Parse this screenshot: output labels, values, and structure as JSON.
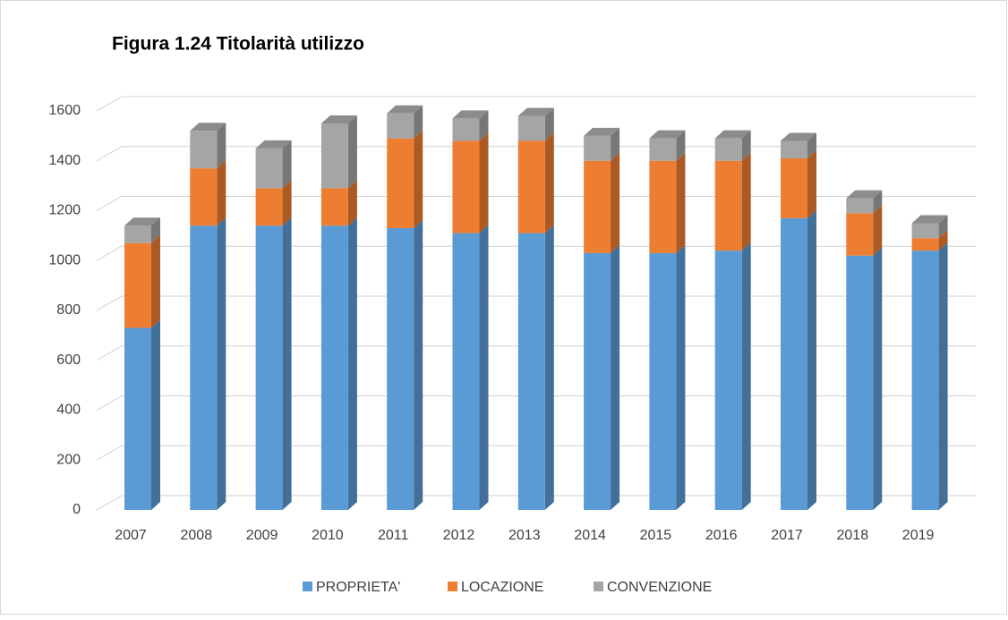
{
  "chart_data": {
    "type": "bar3d_stacked",
    "title": "Figura 1.24 Titolarità utilizzo",
    "categories": [
      "2007",
      "2008",
      "2009",
      "2010",
      "2011",
      "2012",
      "2013",
      "2014",
      "2015",
      "2016",
      "2017",
      "2018",
      "2019"
    ],
    "series": [
      {
        "name": "PROPRIETA'",
        "color": "#5b9bd5",
        "values": [
          730,
          1140,
          1140,
          1140,
          1130,
          1110,
          1110,
          1030,
          1030,
          1040,
          1170,
          1020,
          1040
        ]
      },
      {
        "name": "LOCAZIONE",
        "color": "#ed7d31",
        "values": [
          340,
          230,
          150,
          150,
          360,
          370,
          370,
          370,
          370,
          360,
          240,
          170,
          50
        ]
      },
      {
        "name": "CONVENZIONE",
        "color": "#a5a5a5",
        "values": [
          70,
          150,
          160,
          260,
          100,
          90,
          100,
          100,
          90,
          90,
          70,
          60,
          60
        ]
      }
    ],
    "ylim": [
      0,
      1600
    ],
    "yticks": [
      0,
      200,
      400,
      600,
      800,
      1000,
      1200,
      1400,
      1600
    ],
    "grid": true,
    "legend": "bottom"
  }
}
